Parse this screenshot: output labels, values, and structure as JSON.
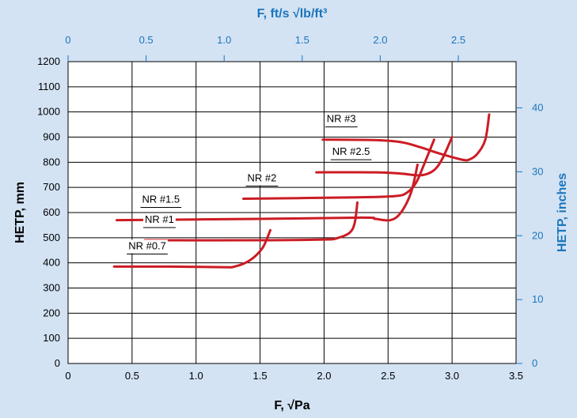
{
  "colors": {
    "background": "#d3e3f4",
    "plot_bg": "#ffffff",
    "curve": "#cc1c24",
    "secondary_axis": "#1b75bb"
  },
  "chart_data": {
    "type": "line",
    "xlabel": "F, √Pa",
    "x2label": "F, ft/s √lb/ft³",
    "ylabel": "HETP, mm",
    "y2label": "HETP, inches",
    "xlim": [
      0,
      3.5
    ],
    "ylim": [
      0,
      1200
    ],
    "x2lim": [
      0,
      2.87
    ],
    "y2lim": [
      0,
      47.24
    ],
    "x_ticks": [
      "0",
      "0.5",
      "1.0",
      "1.5",
      "2.0",
      "2.5",
      "3.0",
      "3.5"
    ],
    "y_ticks": [
      "0",
      "100",
      "200",
      "300",
      "400",
      "500",
      "600",
      "700",
      "800",
      "900",
      "1000",
      "1100",
      "1200"
    ],
    "x2_ticks": [
      "0",
      "0.5",
      "1.0",
      "1.5",
      "2.0",
      "2.5"
    ],
    "y2_ticks": [
      "0",
      "10",
      "20",
      "30",
      "40"
    ],
    "grid": true,
    "series": [
      {
        "name": "NR #0.7",
        "points": [
          [
            0.36,
            385
          ],
          [
            0.8,
            385
          ],
          [
            1.2,
            383
          ],
          [
            1.3,
            385
          ],
          [
            1.42,
            410
          ],
          [
            1.52,
            460
          ],
          [
            1.58,
            530
          ]
        ]
      },
      {
        "name": "NR #1",
        "points": [
          [
            0.6,
            490
          ],
          [
            1.5,
            490
          ],
          [
            2.0,
            493
          ],
          [
            2.1,
            498
          ],
          [
            2.2,
            520
          ],
          [
            2.24,
            560
          ],
          [
            2.26,
            640
          ]
        ]
      },
      {
        "name": "NR #1.5",
        "points": [
          [
            0.38,
            570
          ],
          [
            1.5,
            575
          ],
          [
            2.3,
            580
          ],
          [
            2.4,
            575
          ],
          [
            2.52,
            570
          ],
          [
            2.6,
            600
          ],
          [
            2.68,
            680
          ],
          [
            2.73,
            790
          ]
        ]
      },
      {
        "name": "NR #2",
        "points": [
          [
            1.37,
            655
          ],
          [
            2.2,
            660
          ],
          [
            2.55,
            665
          ],
          [
            2.65,
            680
          ],
          [
            2.72,
            720
          ],
          [
            2.78,
            790
          ],
          [
            2.86,
            890
          ]
        ]
      },
      {
        "name": "NR #2.5",
        "points": [
          [
            1.94,
            760
          ],
          [
            2.4,
            760
          ],
          [
            2.6,
            755
          ],
          [
            2.75,
            748
          ],
          [
            2.85,
            765
          ],
          [
            2.92,
            810
          ],
          [
            3.0,
            900
          ]
        ]
      },
      {
        "name": "NR #3",
        "points": [
          [
            1.99,
            890
          ],
          [
            2.4,
            888
          ],
          [
            2.6,
            880
          ],
          [
            2.75,
            860
          ],
          [
            2.9,
            835
          ],
          [
            3.08,
            810
          ],
          [
            3.14,
            812
          ],
          [
            3.2,
            835
          ],
          [
            3.26,
            890
          ],
          [
            3.29,
            990
          ]
        ]
      }
    ]
  }
}
